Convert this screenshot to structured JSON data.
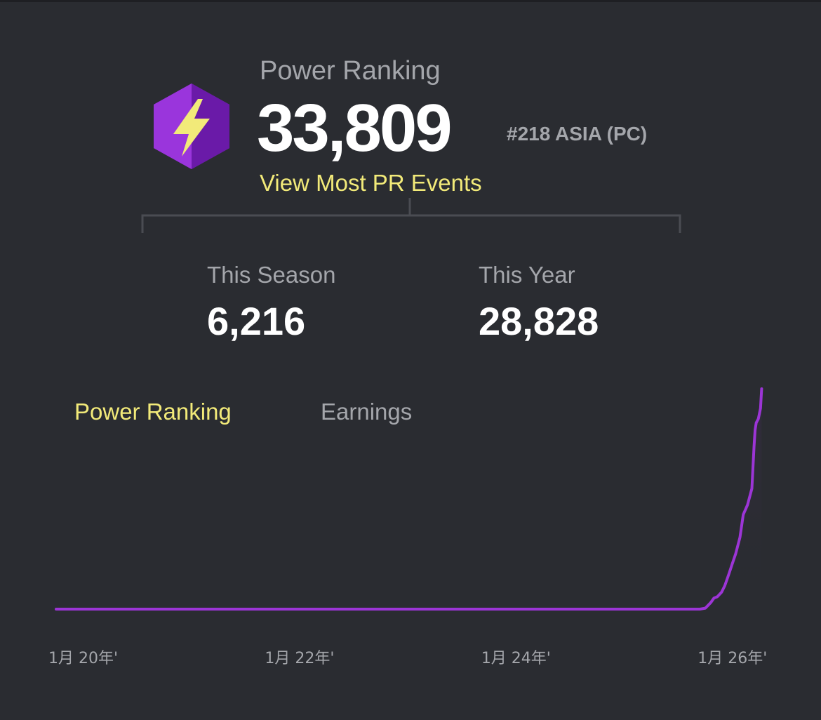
{
  "header": {
    "label": "Power Ranking",
    "value": "33,809",
    "rank": "#218 ASIA (PC)",
    "link": "View Most PR Events",
    "icon": "lightning-hexagon-icon",
    "colors": {
      "accent": "#f2ea79",
      "icon_purple": "#7b1fbf",
      "bolt": "#f2ea79"
    }
  },
  "stats": [
    {
      "label": "This Season",
      "value": "6,216"
    },
    {
      "label": "This Year",
      "value": "28,828"
    }
  ],
  "tabs": [
    {
      "label": "Power Ranking",
      "active": true
    },
    {
      "label": "Earnings",
      "active": false
    }
  ],
  "chart_data": {
    "type": "line",
    "color": "#9c35d6",
    "x_tick_labels": [
      "1月 20年'",
      "1月 22年'",
      "1月 24年'",
      "1月 26年'"
    ],
    "x_tick_positions": [
      2020.0,
      2022.0,
      2024.0,
      2026.0
    ],
    "xlim": [
      2019.75,
      2026.3
    ],
    "ylim": [
      0,
      33809
    ],
    "series": [
      {
        "x": [
          2019.75,
          2020.5,
          2021.5,
          2022.5,
          2023.5,
          2025.0,
          2025.6,
          2025.7,
          2025.75,
          2025.8,
          2025.83,
          2025.86,
          2025.9,
          2025.93,
          2025.97,
          2026.0,
          2026.03,
          2026.07,
          2026.1,
          2026.14,
          2026.18,
          2026.2,
          2026.21,
          2026.22,
          2026.24,
          2026.26,
          2026.27
        ],
        "y": [
          0,
          0,
          0,
          0,
          0,
          0,
          0,
          0,
          150,
          1000,
          1700,
          1900,
          2600,
          3600,
          5500,
          7000,
          8500,
          11000,
          14500,
          16000,
          18500,
          25000,
          27500,
          28600,
          29200,
          30800,
          33809
        ]
      }
    ]
  }
}
